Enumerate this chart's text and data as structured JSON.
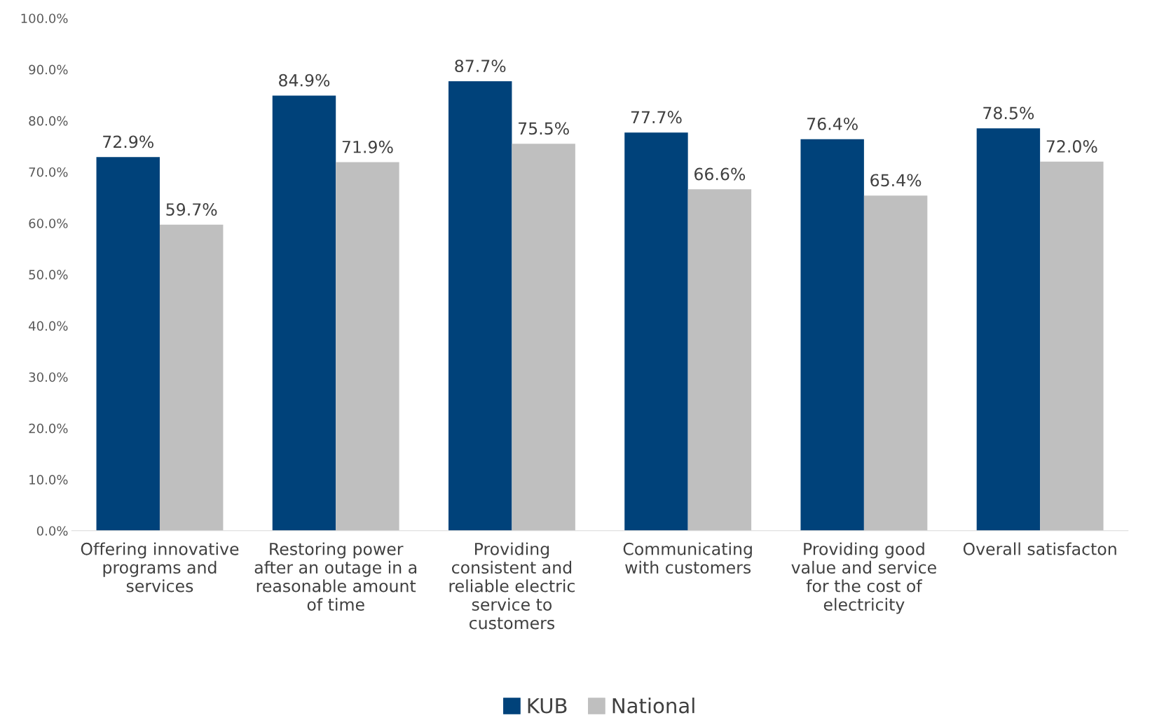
{
  "chart_data": {
    "type": "bar",
    "categories": [
      "Offering innovative\nprograms and\nservices",
      "Restoring power\nafter an outage in a\nreasonable amount\nof time",
      "Providing\nconsistent and\nreliable electric\nservice to\ncustomers",
      "Communicating\nwith customers",
      "Providing good\nvalue and service\nfor the cost of\nelectricity",
      "Overall satisfacton"
    ],
    "series": [
      {
        "name": "KUB",
        "color": "#00427a",
        "values": [
          72.9,
          84.9,
          87.7,
          77.7,
          76.4,
          78.5
        ]
      },
      {
        "name": "National",
        "color": "#bfbfbf",
        "values": [
          59.7,
          71.9,
          75.5,
          66.6,
          65.4,
          72.0
        ]
      }
    ],
    "ylim": [
      0,
      100
    ],
    "yticks": [
      {
        "value": 0,
        "label": "0.0%"
      },
      {
        "value": 10,
        "label": "10.0%"
      },
      {
        "value": 20,
        "label": "20.0%"
      },
      {
        "value": 30,
        "label": "30.0%"
      },
      {
        "value": 40,
        "label": "40.0%"
      },
      {
        "value": 50,
        "label": "50.0%"
      },
      {
        "value": 60,
        "label": "60.0%"
      },
      {
        "value": 70,
        "label": "70.0%"
      },
      {
        "value": 80,
        "label": "80.0%"
      },
      {
        "value": 90,
        "label": "90.0%"
      },
      {
        "value": 100,
        "label": "100.0%"
      }
    ],
    "value_labels": [
      [
        "72.9%",
        "84.9%",
        "87.7%",
        "77.7%",
        "76.4%",
        "78.5%"
      ],
      [
        "59.7%",
        "71.9%",
        "75.5%",
        "66.6%",
        "65.4%",
        "72.0%"
      ]
    ],
    "grid": false,
    "legend": "bottom"
  }
}
